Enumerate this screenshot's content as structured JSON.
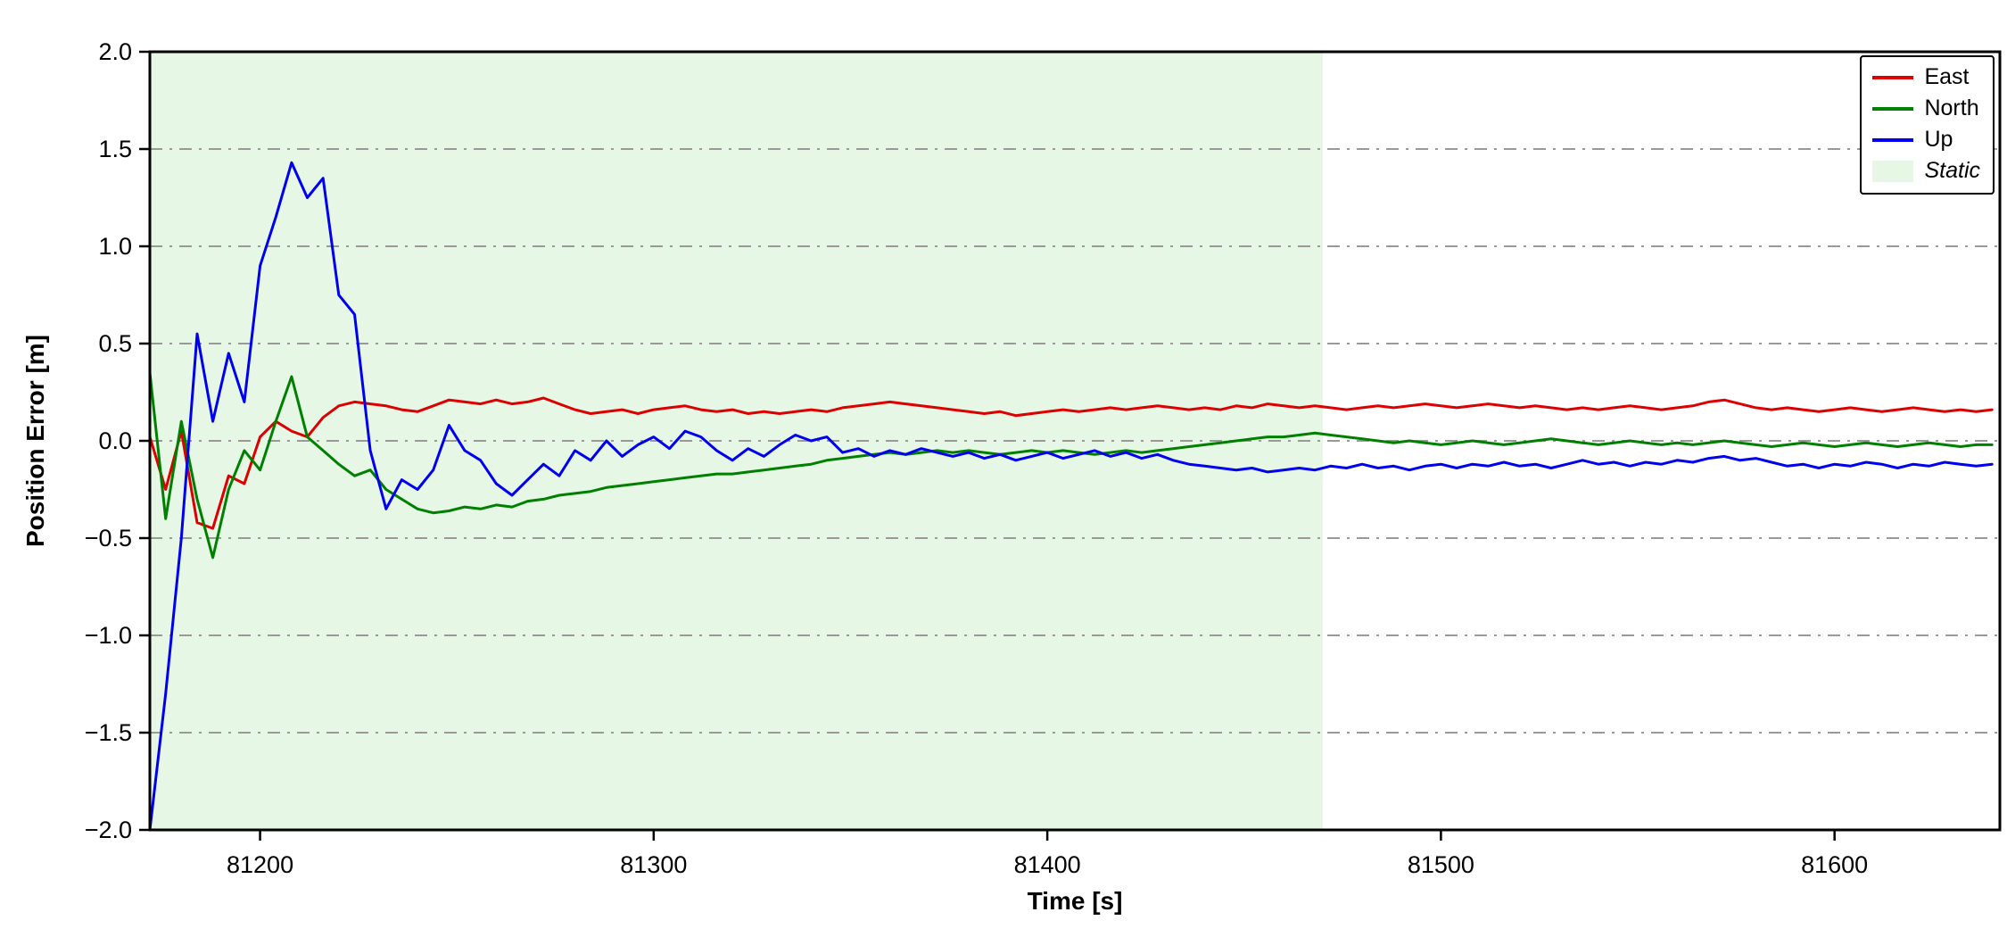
{
  "chart_data": {
    "type": "line",
    "title": "",
    "xlabel": "Time [s]",
    "ylabel": "Position Error [m]",
    "xlim": [
      81172,
      81642
    ],
    "ylim": [
      -2.0,
      2.0
    ],
    "background": "#ffffff",
    "xticks": [
      81200,
      81300,
      81400,
      81500,
      81600
    ],
    "xtick_labels": [
      "81200",
      "81300",
      "81400",
      "81500",
      "81600"
    ],
    "yticks": [
      -2.0,
      -1.5,
      -1.0,
      -0.5,
      0.0,
      0.5,
      1.0,
      1.5,
      2.0
    ],
    "ytick_labels": [
      "−2.0",
      "−1.5",
      "−1.0",
      "−0.5",
      "0.0",
      "0.5",
      "1.0",
      "1.5",
      "2.0"
    ],
    "grid": {
      "axis": "y",
      "style": "dash-dot",
      "color": "#999999",
      "values": [
        -1.5,
        -1.0,
        -0.5,
        0.0,
        0.5,
        1.0,
        1.5
      ]
    },
    "static_region": {
      "label": "Static",
      "x_start": 81172,
      "x_end": 81470,
      "color": "#e6f7e6"
    },
    "legend": {
      "position": "upper right",
      "entries": [
        {
          "label": "East",
          "color": "#dd0000",
          "type": "line",
          "italic": false
        },
        {
          "label": "North",
          "color": "#008000",
          "type": "line",
          "italic": false
        },
        {
          "label": "Up",
          "color": "#0000ee",
          "type": "line",
          "italic": false
        },
        {
          "label": "Static",
          "color": "#e6f7e6",
          "type": "patch",
          "italic": true
        }
      ]
    },
    "x": [
      81172,
      81176,
      81180,
      81184,
      81188,
      81192,
      81196,
      81200,
      81204,
      81208,
      81212,
      81216,
      81220,
      81224,
      81228,
      81232,
      81236,
      81240,
      81244,
      81248,
      81252,
      81256,
      81260,
      81264,
      81268,
      81272,
      81276,
      81280,
      81284,
      81288,
      81292,
      81296,
      81300,
      81304,
      81308,
      81312,
      81316,
      81320,
      81324,
      81328,
      81332,
      81336,
      81340,
      81344,
      81348,
      81352,
      81356,
      81360,
      81364,
      81368,
      81372,
      81376,
      81380,
      81384,
      81388,
      81392,
      81396,
      81400,
      81404,
      81408,
      81412,
      81416,
      81420,
      81424,
      81428,
      81432,
      81436,
      81440,
      81444,
      81448,
      81452,
      81456,
      81460,
      81464,
      81468,
      81472,
      81476,
      81480,
      81484,
      81488,
      81492,
      81496,
      81500,
      81504,
      81508,
      81512,
      81516,
      81520,
      81524,
      81528,
      81532,
      81536,
      81540,
      81544,
      81548,
      81552,
      81556,
      81560,
      81564,
      81568,
      81572,
      81576,
      81580,
      81584,
      81588,
      81592,
      81596,
      81600,
      81604,
      81608,
      81612,
      81616,
      81620,
      81624,
      81628,
      81632,
      81636,
      81640
    ],
    "series": [
      {
        "name": "East",
        "color": "#dd0000",
        "values": [
          0.02,
          -0.25,
          0.05,
          -0.42,
          -0.45,
          -0.18,
          -0.22,
          0.02,
          0.1,
          0.05,
          0.02,
          0.12,
          0.18,
          0.2,
          0.19,
          0.18,
          0.16,
          0.15,
          0.18,
          0.21,
          0.2,
          0.19,
          0.21,
          0.19,
          0.2,
          0.22,
          0.19,
          0.16,
          0.14,
          0.15,
          0.16,
          0.14,
          0.16,
          0.17,
          0.18,
          0.16,
          0.15,
          0.16,
          0.14,
          0.15,
          0.14,
          0.15,
          0.16,
          0.15,
          0.17,
          0.18,
          0.19,
          0.2,
          0.19,
          0.18,
          0.17,
          0.16,
          0.15,
          0.14,
          0.15,
          0.13,
          0.14,
          0.15,
          0.16,
          0.15,
          0.16,
          0.17,
          0.16,
          0.17,
          0.18,
          0.17,
          0.16,
          0.17,
          0.16,
          0.18,
          0.17,
          0.19,
          0.18,
          0.17,
          0.18,
          0.17,
          0.16,
          0.17,
          0.18,
          0.17,
          0.18,
          0.19,
          0.18,
          0.17,
          0.18,
          0.19,
          0.18,
          0.17,
          0.18,
          0.17,
          0.16,
          0.17,
          0.16,
          0.17,
          0.18,
          0.17,
          0.16,
          0.17,
          0.18,
          0.2,
          0.21,
          0.19,
          0.17,
          0.16,
          0.17,
          0.16,
          0.15,
          0.16,
          0.17,
          0.16,
          0.15,
          0.16,
          0.17,
          0.16,
          0.15,
          0.16,
          0.15,
          0.16
        ]
      },
      {
        "name": "North",
        "color": "#008000",
        "values": [
          0.35,
          -0.4,
          0.1,
          -0.3,
          -0.6,
          -0.25,
          -0.05,
          -0.15,
          0.1,
          0.33,
          0.02,
          -0.05,
          -0.12,
          -0.18,
          -0.15,
          -0.25,
          -0.3,
          -0.35,
          -0.37,
          -0.36,
          -0.34,
          -0.35,
          -0.33,
          -0.34,
          -0.31,
          -0.3,
          -0.28,
          -0.27,
          -0.26,
          -0.24,
          -0.23,
          -0.22,
          -0.21,
          -0.2,
          -0.19,
          -0.18,
          -0.17,
          -0.17,
          -0.16,
          -0.15,
          -0.14,
          -0.13,
          -0.12,
          -0.1,
          -0.09,
          -0.08,
          -0.07,
          -0.06,
          -0.07,
          -0.06,
          -0.05,
          -0.06,
          -0.05,
          -0.06,
          -0.07,
          -0.06,
          -0.05,
          -0.06,
          -0.05,
          -0.06,
          -0.07,
          -0.06,
          -0.05,
          -0.06,
          -0.05,
          -0.04,
          -0.03,
          -0.02,
          -0.01,
          0.0,
          0.01,
          0.02,
          0.02,
          0.03,
          0.04,
          0.03,
          0.02,
          0.01,
          0.0,
          -0.01,
          0.0,
          -0.01,
          -0.02,
          -0.01,
          0.0,
          -0.01,
          -0.02,
          -0.01,
          0.0,
          0.01,
          0.0,
          -0.01,
          -0.02,
          -0.01,
          0.0,
          -0.01,
          -0.02,
          -0.01,
          -0.02,
          -0.01,
          0.0,
          -0.01,
          -0.02,
          -0.03,
          -0.02,
          -0.01,
          -0.02,
          -0.03,
          -0.02,
          -0.01,
          -0.02,
          -0.03,
          -0.02,
          -0.01,
          -0.02,
          -0.03,
          -0.02,
          -0.02
        ]
      },
      {
        "name": "Up",
        "color": "#0000ee",
        "values": [
          -2.0,
          -1.3,
          -0.5,
          0.55,
          0.1,
          0.45,
          0.2,
          0.9,
          1.15,
          1.43,
          1.25,
          1.35,
          0.75,
          0.65,
          -0.05,
          -0.35,
          -0.2,
          -0.25,
          -0.15,
          0.08,
          -0.05,
          -0.1,
          -0.22,
          -0.28,
          -0.2,
          -0.12,
          -0.18,
          -0.05,
          -0.1,
          0.0,
          -0.08,
          -0.02,
          0.02,
          -0.04,
          0.05,
          0.02,
          -0.05,
          -0.1,
          -0.04,
          -0.08,
          -0.02,
          0.03,
          0.0,
          0.02,
          -0.06,
          -0.04,
          -0.08,
          -0.05,
          -0.07,
          -0.04,
          -0.06,
          -0.08,
          -0.06,
          -0.09,
          -0.07,
          -0.1,
          -0.08,
          -0.06,
          -0.09,
          -0.07,
          -0.05,
          -0.08,
          -0.06,
          -0.09,
          -0.07,
          -0.1,
          -0.12,
          -0.13,
          -0.14,
          -0.15,
          -0.14,
          -0.16,
          -0.15,
          -0.14,
          -0.15,
          -0.13,
          -0.14,
          -0.12,
          -0.14,
          -0.13,
          -0.15,
          -0.13,
          -0.12,
          -0.14,
          -0.12,
          -0.13,
          -0.11,
          -0.13,
          -0.12,
          -0.14,
          -0.12,
          -0.1,
          -0.12,
          -0.11,
          -0.13,
          -0.11,
          -0.12,
          -0.1,
          -0.11,
          -0.09,
          -0.08,
          -0.1,
          -0.09,
          -0.11,
          -0.13,
          -0.12,
          -0.14,
          -0.12,
          -0.13,
          -0.11,
          -0.12,
          -0.14,
          -0.12,
          -0.13,
          -0.11,
          -0.12,
          -0.13,
          -0.12
        ]
      }
    ]
  }
}
